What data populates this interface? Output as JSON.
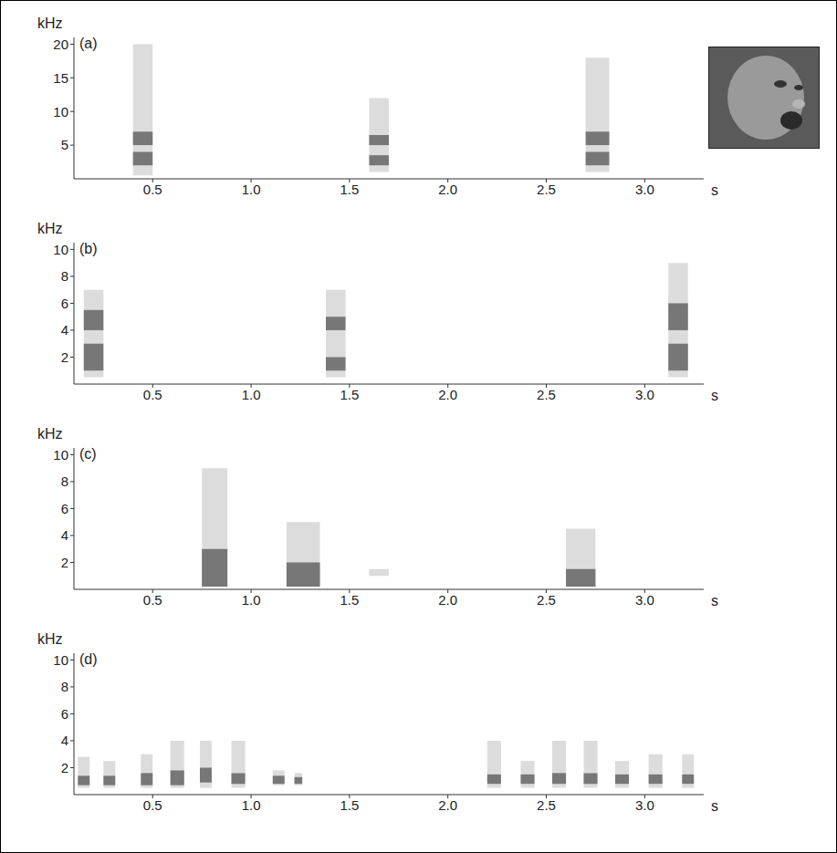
{
  "chart_data": [
    {
      "type": "spectrogram",
      "title": "(a)",
      "x_label": "s",
      "y_label": "kHz",
      "xlim": [
        0.1,
        3.3
      ],
      "xticks": [
        0.5,
        {
          "value": 1,
          "label": "1.0"
        },
        1.5,
        {
          "value": 2,
          "label": "2.0"
        },
        2.5,
        {
          "value": 3,
          "label": "3.0"
        }
      ],
      "ylim": [
        0,
        21
      ],
      "yticks": [
        5,
        10,
        15,
        20
      ],
      "calls": [
        {
          "start": 0.4,
          "end": 0.5,
          "low": 0.5,
          "high": 20,
          "bands": [
            [
              2,
              4
            ],
            [
              5,
              7
            ]
          ]
        },
        {
          "start": 1.6,
          "end": 1.7,
          "low": 1,
          "high": 12,
          "bands": [
            [
              2,
              3.5
            ],
            [
              5,
              6.5
            ]
          ]
        },
        {
          "start": 2.7,
          "end": 2.82,
          "low": 1,
          "high": 18,
          "bands": [
            [
              2,
              4
            ],
            [
              5,
              7
            ]
          ]
        }
      ]
    },
    {
      "type": "spectrogram",
      "title": "(b)",
      "x_label": "s",
      "y_label": "kHz",
      "xlim": [
        0.1,
        3.3
      ],
      "xticks": [
        0.5,
        {
          "value": 1,
          "label": "1.0"
        },
        1.5,
        {
          "value": 2,
          "label": "2.0"
        },
        2.5,
        {
          "value": 3,
          "label": "3.0"
        }
      ],
      "ylim": [
        0,
        10.5
      ],
      "yticks": [
        2,
        4,
        6,
        8,
        10
      ],
      "calls": [
        {
          "start": 0.15,
          "end": 0.25,
          "low": 0.5,
          "high": 7,
          "bands": [
            [
              1,
              3
            ],
            [
              4,
              5.5
            ]
          ]
        },
        {
          "start": 1.38,
          "end": 1.48,
          "low": 0.5,
          "high": 7,
          "bands": [
            [
              1,
              2
            ],
            [
              4,
              5
            ]
          ]
        },
        {
          "start": 3.12,
          "end": 3.22,
          "low": 0.5,
          "high": 9,
          "bands": [
            [
              1,
              3
            ],
            [
              4,
              6
            ]
          ]
        }
      ]
    },
    {
      "type": "spectrogram",
      "title": "(c)",
      "x_label": "s",
      "y_label": "kHz",
      "xlim": [
        0.1,
        3.3
      ],
      "xticks": [
        0.5,
        {
          "value": 1,
          "label": "1.0"
        },
        1.5,
        {
          "value": 2,
          "label": "2.0"
        },
        2.5,
        {
          "value": 3,
          "label": "3.0"
        }
      ],
      "ylim": [
        0,
        10.5
      ],
      "yticks": [
        2,
        4,
        6,
        8,
        10
      ],
      "calls": [
        {
          "start": 0.75,
          "end": 0.88,
          "low": 0.2,
          "high": 9,
          "bands": [
            [
              0.2,
              3
            ]
          ]
        },
        {
          "start": 1.18,
          "end": 1.35,
          "low": 0.2,
          "high": 5,
          "bands": [
            [
              0.2,
              2
            ]
          ]
        },
        {
          "start": 1.6,
          "end": 1.7,
          "low": 1,
          "high": 1.5,
          "bands": []
        },
        {
          "start": 2.6,
          "end": 2.75,
          "low": 0.2,
          "high": 4.5,
          "bands": [
            [
              0.2,
              1.5
            ]
          ]
        }
      ]
    },
    {
      "type": "spectrogram",
      "title": "(d)",
      "x_label": "s",
      "y_label": "kHz",
      "xlim": [
        0.1,
        3.3
      ],
      "xticks": [
        0.5,
        {
          "value": 1,
          "label": "1.0"
        },
        1.5,
        {
          "value": 2,
          "label": "2.0"
        },
        2.5,
        {
          "value": 3,
          "label": "3.0"
        }
      ],
      "ylim": [
        0,
        10.5
      ],
      "yticks": [
        2,
        4,
        6,
        8,
        10
      ],
      "calls": [
        {
          "start": 0.12,
          "end": 0.18,
          "low": 0.5,
          "high": 2.8,
          "bands": [
            [
              0.7,
              1.4
            ]
          ]
        },
        {
          "start": 0.25,
          "end": 0.31,
          "low": 0.5,
          "high": 2.5,
          "bands": [
            [
              0.7,
              1.4
            ]
          ]
        },
        {
          "start": 0.44,
          "end": 0.5,
          "low": 0.5,
          "high": 3,
          "bands": [
            [
              0.7,
              1.6
            ]
          ]
        },
        {
          "start": 0.59,
          "end": 0.66,
          "low": 0.5,
          "high": 4,
          "bands": [
            [
              0.7,
              1.8
            ]
          ]
        },
        {
          "start": 0.74,
          "end": 0.8,
          "low": 0.5,
          "high": 4,
          "bands": [
            [
              0.9,
              2
            ]
          ]
        },
        {
          "start": 0.9,
          "end": 0.97,
          "low": 0.5,
          "high": 4,
          "bands": [
            [
              0.8,
              1.6
            ]
          ]
        },
        {
          "start": 1.11,
          "end": 1.17,
          "low": 0.7,
          "high": 1.8,
          "bands": [
            [
              0.8,
              1.4
            ]
          ]
        },
        {
          "start": 1.22,
          "end": 1.26,
          "low": 0.7,
          "high": 1.6,
          "bands": [
            [
              0.8,
              1.3
            ]
          ]
        },
        {
          "start": 2.2,
          "end": 2.27,
          "low": 0.5,
          "high": 4,
          "bands": [
            [
              0.8,
              1.5
            ]
          ]
        },
        {
          "start": 2.37,
          "end": 2.44,
          "low": 0.5,
          "high": 2.5,
          "bands": [
            [
              0.8,
              1.5
            ]
          ]
        },
        {
          "start": 2.53,
          "end": 2.6,
          "low": 0.5,
          "high": 4,
          "bands": [
            [
              0.8,
              1.6
            ]
          ]
        },
        {
          "start": 2.69,
          "end": 2.76,
          "low": 0.5,
          "high": 4,
          "bands": [
            [
              0.8,
              1.6
            ]
          ]
        },
        {
          "start": 2.85,
          "end": 2.92,
          "low": 0.5,
          "high": 2.5,
          "bands": [
            [
              0.8,
              1.5
            ]
          ]
        },
        {
          "start": 3.02,
          "end": 3.09,
          "low": 0.5,
          "high": 3,
          "bands": [
            [
              0.8,
              1.5
            ]
          ]
        },
        {
          "start": 3.19,
          "end": 3.25,
          "low": 0.5,
          "high": 3,
          "bands": [
            [
              0.8,
              1.5
            ]
          ]
        }
      ]
    }
  ]
}
